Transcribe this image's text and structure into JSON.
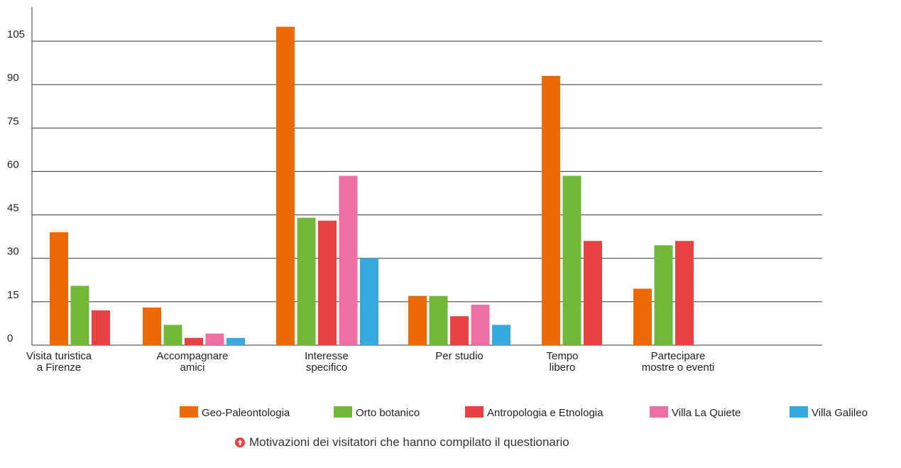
{
  "caption": {
    "text": "Motivazioni dei visitatori che hanno compilato il questionario",
    "icon": "arrow-up-circle-icon",
    "icon_color": "#e8413e"
  },
  "chart_data": {
    "type": "bar",
    "ylim": [
      0,
      115
    ],
    "yticks": [
      0,
      15,
      30,
      45,
      60,
      75,
      90,
      105
    ],
    "grid": true,
    "legend_position": "bottom",
    "categories": [
      [
        "Visita turistica",
        "a Firenze"
      ],
      [
        "Accompagnare",
        "amici"
      ],
      [
        "Interesse",
        "specifico"
      ],
      [
        "Per studio"
      ],
      [
        "Tempo",
        "libero"
      ],
      [
        "Partecipare",
        "mostre o eventi"
      ]
    ],
    "series": [
      {
        "name": "Geo-Paleontologia",
        "color": "#ec6a05",
        "values": [
          39,
          13,
          110,
          17,
          93,
          19.5
        ]
      },
      {
        "name": "Orto botanico",
        "color": "#72b83b",
        "values": [
          20.5,
          7,
          44,
          17,
          58.5,
          34.5
        ]
      },
      {
        "name": "Antropologia e Etnologia",
        "color": "#e84244",
        "values": [
          12,
          2.5,
          43,
          10,
          36,
          36
        ]
      },
      {
        "name": "Villa La Quiete",
        "color": "#ee6fa3",
        "values": [
          null,
          4,
          58.5,
          14,
          null,
          null
        ]
      },
      {
        "name": "Villa Galileo",
        "color": "#36a9e1",
        "values": [
          null,
          2.5,
          30,
          7,
          null,
          null
        ]
      }
    ]
  }
}
